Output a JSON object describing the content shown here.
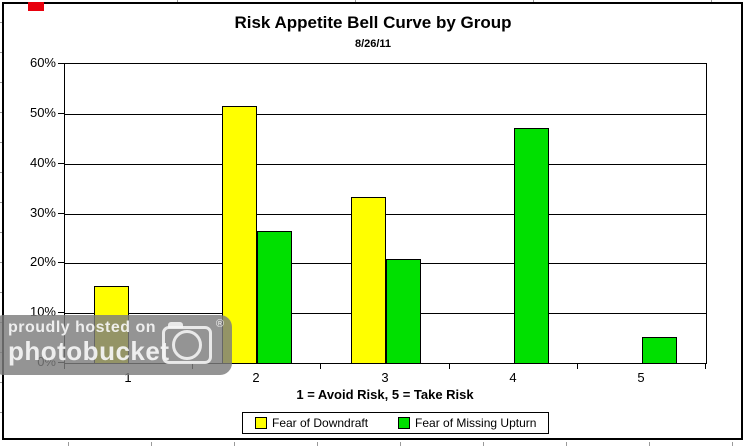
{
  "chart_data": {
    "type": "bar",
    "title": "Risk Appetite Bell Curve by Group",
    "subtitle": "8/26/11",
    "categories": [
      "1",
      "2",
      "3",
      "4",
      "5"
    ],
    "series": [
      {
        "name": "Fear of Downdraft",
        "color": "#ffff00",
        "values": [
          15.4,
          51.6,
          33.4,
          0,
          0
        ]
      },
      {
        "name": "Fear of Missing Upturn",
        "color": "#00e000",
        "values": [
          0,
          26.4,
          20.8,
          47.2,
          5.2
        ]
      }
    ],
    "xlabel": "1 = Avoid Risk, 5 = Take Risk",
    "ylabel": "",
    "ylim": [
      0,
      60
    ],
    "ytick_step": 10,
    "ytick_labels": [
      "0%",
      "10%",
      "20%",
      "30%",
      "40%",
      "50%",
      "60%"
    ],
    "grid": true,
    "legend_position": "bottom",
    "plot_background": "#ffffff",
    "axis_color": "#000000"
  },
  "watermark": {
    "line1": "proudly hosted on",
    "line2": "photobucket",
    "registered": "®",
    "icon": "camera-icon",
    "background": "#7c7c7c",
    "text_color": "#f5f5f5"
  },
  "frame": {
    "background": "#ffffff",
    "border_color": "#000000",
    "red_marker_color": "#e8000d"
  }
}
